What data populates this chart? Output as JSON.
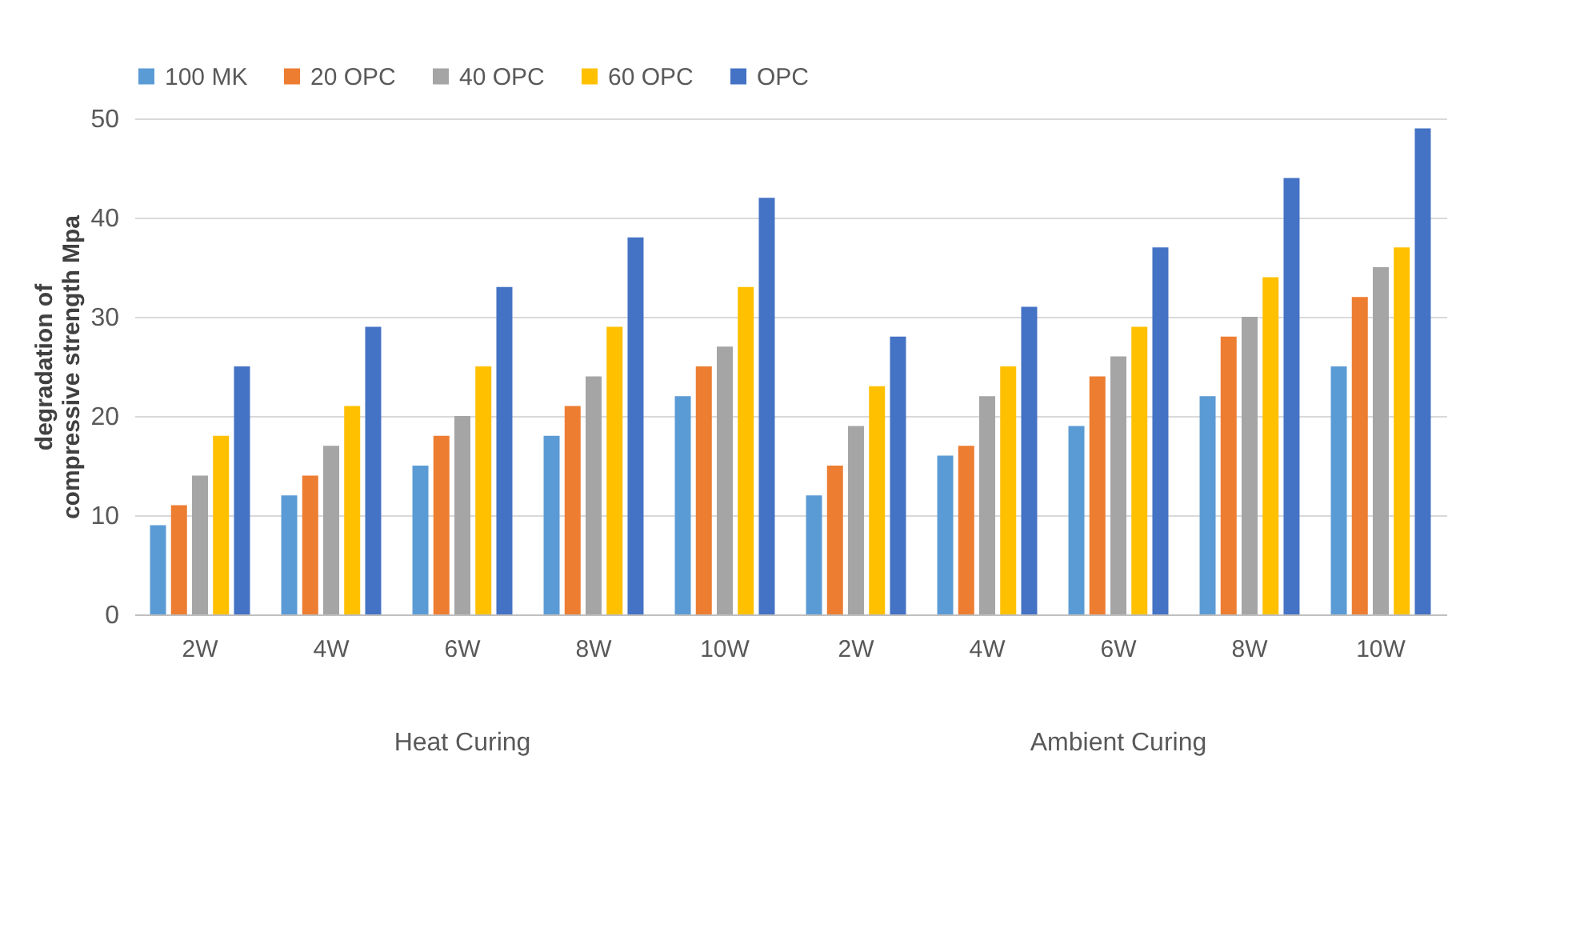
{
  "chart_data": {
    "type": "bar",
    "ylabel": "degradation of compressive strength Mpa",
    "categories": [
      "2W",
      "4W",
      "6W",
      "8W",
      "10W",
      "2W",
      "4W",
      "6W",
      "8W",
      "10W"
    ],
    "series": [
      {
        "name": "100 MK",
        "color": "#5b9bd5",
        "values": [
          9,
          12,
          15,
          18,
          22,
          12,
          16,
          19,
          22,
          25
        ]
      },
      {
        "name": "20 OPC",
        "color": "#ed7d31",
        "values": [
          11,
          14,
          18,
          21,
          25,
          15,
          17,
          24,
          28,
          32
        ]
      },
      {
        "name": "40 OPC",
        "color": "#a5a5a5",
        "values": [
          14,
          17,
          20,
          24,
          27,
          19,
          22,
          26,
          30,
          35
        ]
      },
      {
        "name": "60 OPC",
        "color": "#ffc000",
        "values": [
          18,
          21,
          25,
          29,
          33,
          23,
          25,
          29,
          34,
          37
        ]
      },
      {
        "name": "OPC",
        "color": "#4472c4",
        "values": [
          25,
          29,
          33,
          38,
          42,
          28,
          31,
          37,
          44,
          49
        ]
      }
    ],
    "annotations": [
      "Heat Curing",
      "Ambient Curing"
    ],
    "ylim": [
      0,
      50
    ],
    "yticks": [
      0,
      10,
      20,
      30,
      40,
      50
    ],
    "grid": "y",
    "legend": "top"
  }
}
